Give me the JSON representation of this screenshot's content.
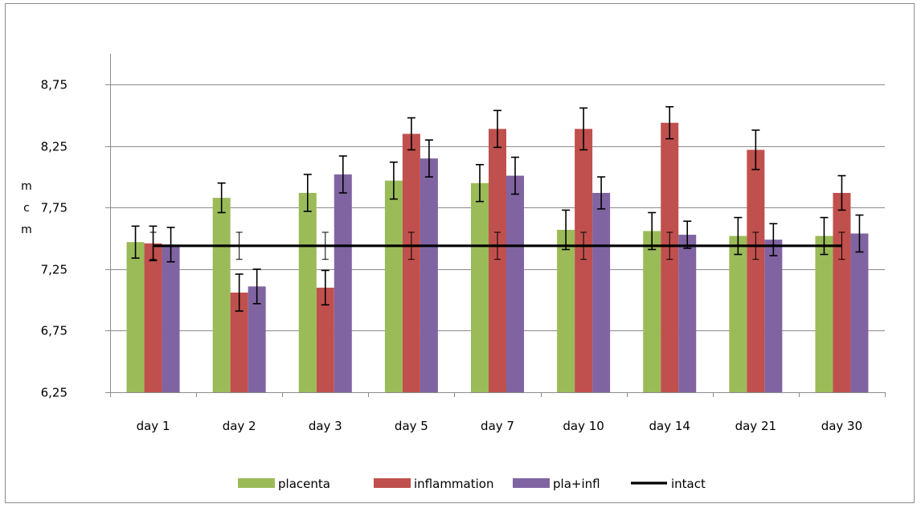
{
  "chart_data": {
    "type": "bar",
    "categories": [
      "day 1",
      "day 2",
      "day 3",
      "day 5",
      "day 7",
      "day 10",
      "day 14",
      "day 21",
      "day 30"
    ],
    "ylabel_letters": [
      "m",
      "c",
      "m"
    ],
    "ylim": [
      6.25,
      9.0
    ],
    "yticks": [
      6.25,
      6.75,
      7.25,
      7.75,
      8.25,
      8.75
    ],
    "ytick_labels": [
      "6,25",
      "6,75",
      "7,25",
      "7,75",
      "8,25",
      "8,75"
    ],
    "grid": true,
    "legend_position": "bottom",
    "series": [
      {
        "name": "placenta",
        "color": "#9bbb59",
        "values": [
          7.47,
          7.83,
          7.87,
          7.97,
          7.95,
          7.57,
          7.56,
          7.52,
          7.52
        ],
        "errors": [
          0.13,
          0.12,
          0.15,
          0.15,
          0.15,
          0.16,
          0.15,
          0.15,
          0.15
        ]
      },
      {
        "name": "inflammation",
        "color": "#c0504d",
        "values": [
          7.46,
          7.06,
          7.1,
          8.35,
          8.39,
          8.39,
          8.44,
          8.22,
          7.87
        ],
        "errors": [
          0.14,
          0.15,
          0.14,
          0.13,
          0.15,
          0.17,
          0.13,
          0.16,
          0.14
        ]
      },
      {
        "name": "pla+infl",
        "color": "#8064a2",
        "values": [
          7.45,
          7.11,
          8.02,
          8.15,
          8.01,
          7.87,
          7.53,
          7.49,
          7.54
        ],
        "errors": [
          0.14,
          0.14,
          0.15,
          0.15,
          0.15,
          0.13,
          0.11,
          0.13,
          0.15
        ]
      }
    ],
    "line": {
      "name": "intact",
      "color": "#000000",
      "value": 7.44,
      "error": 0.11
    }
  }
}
